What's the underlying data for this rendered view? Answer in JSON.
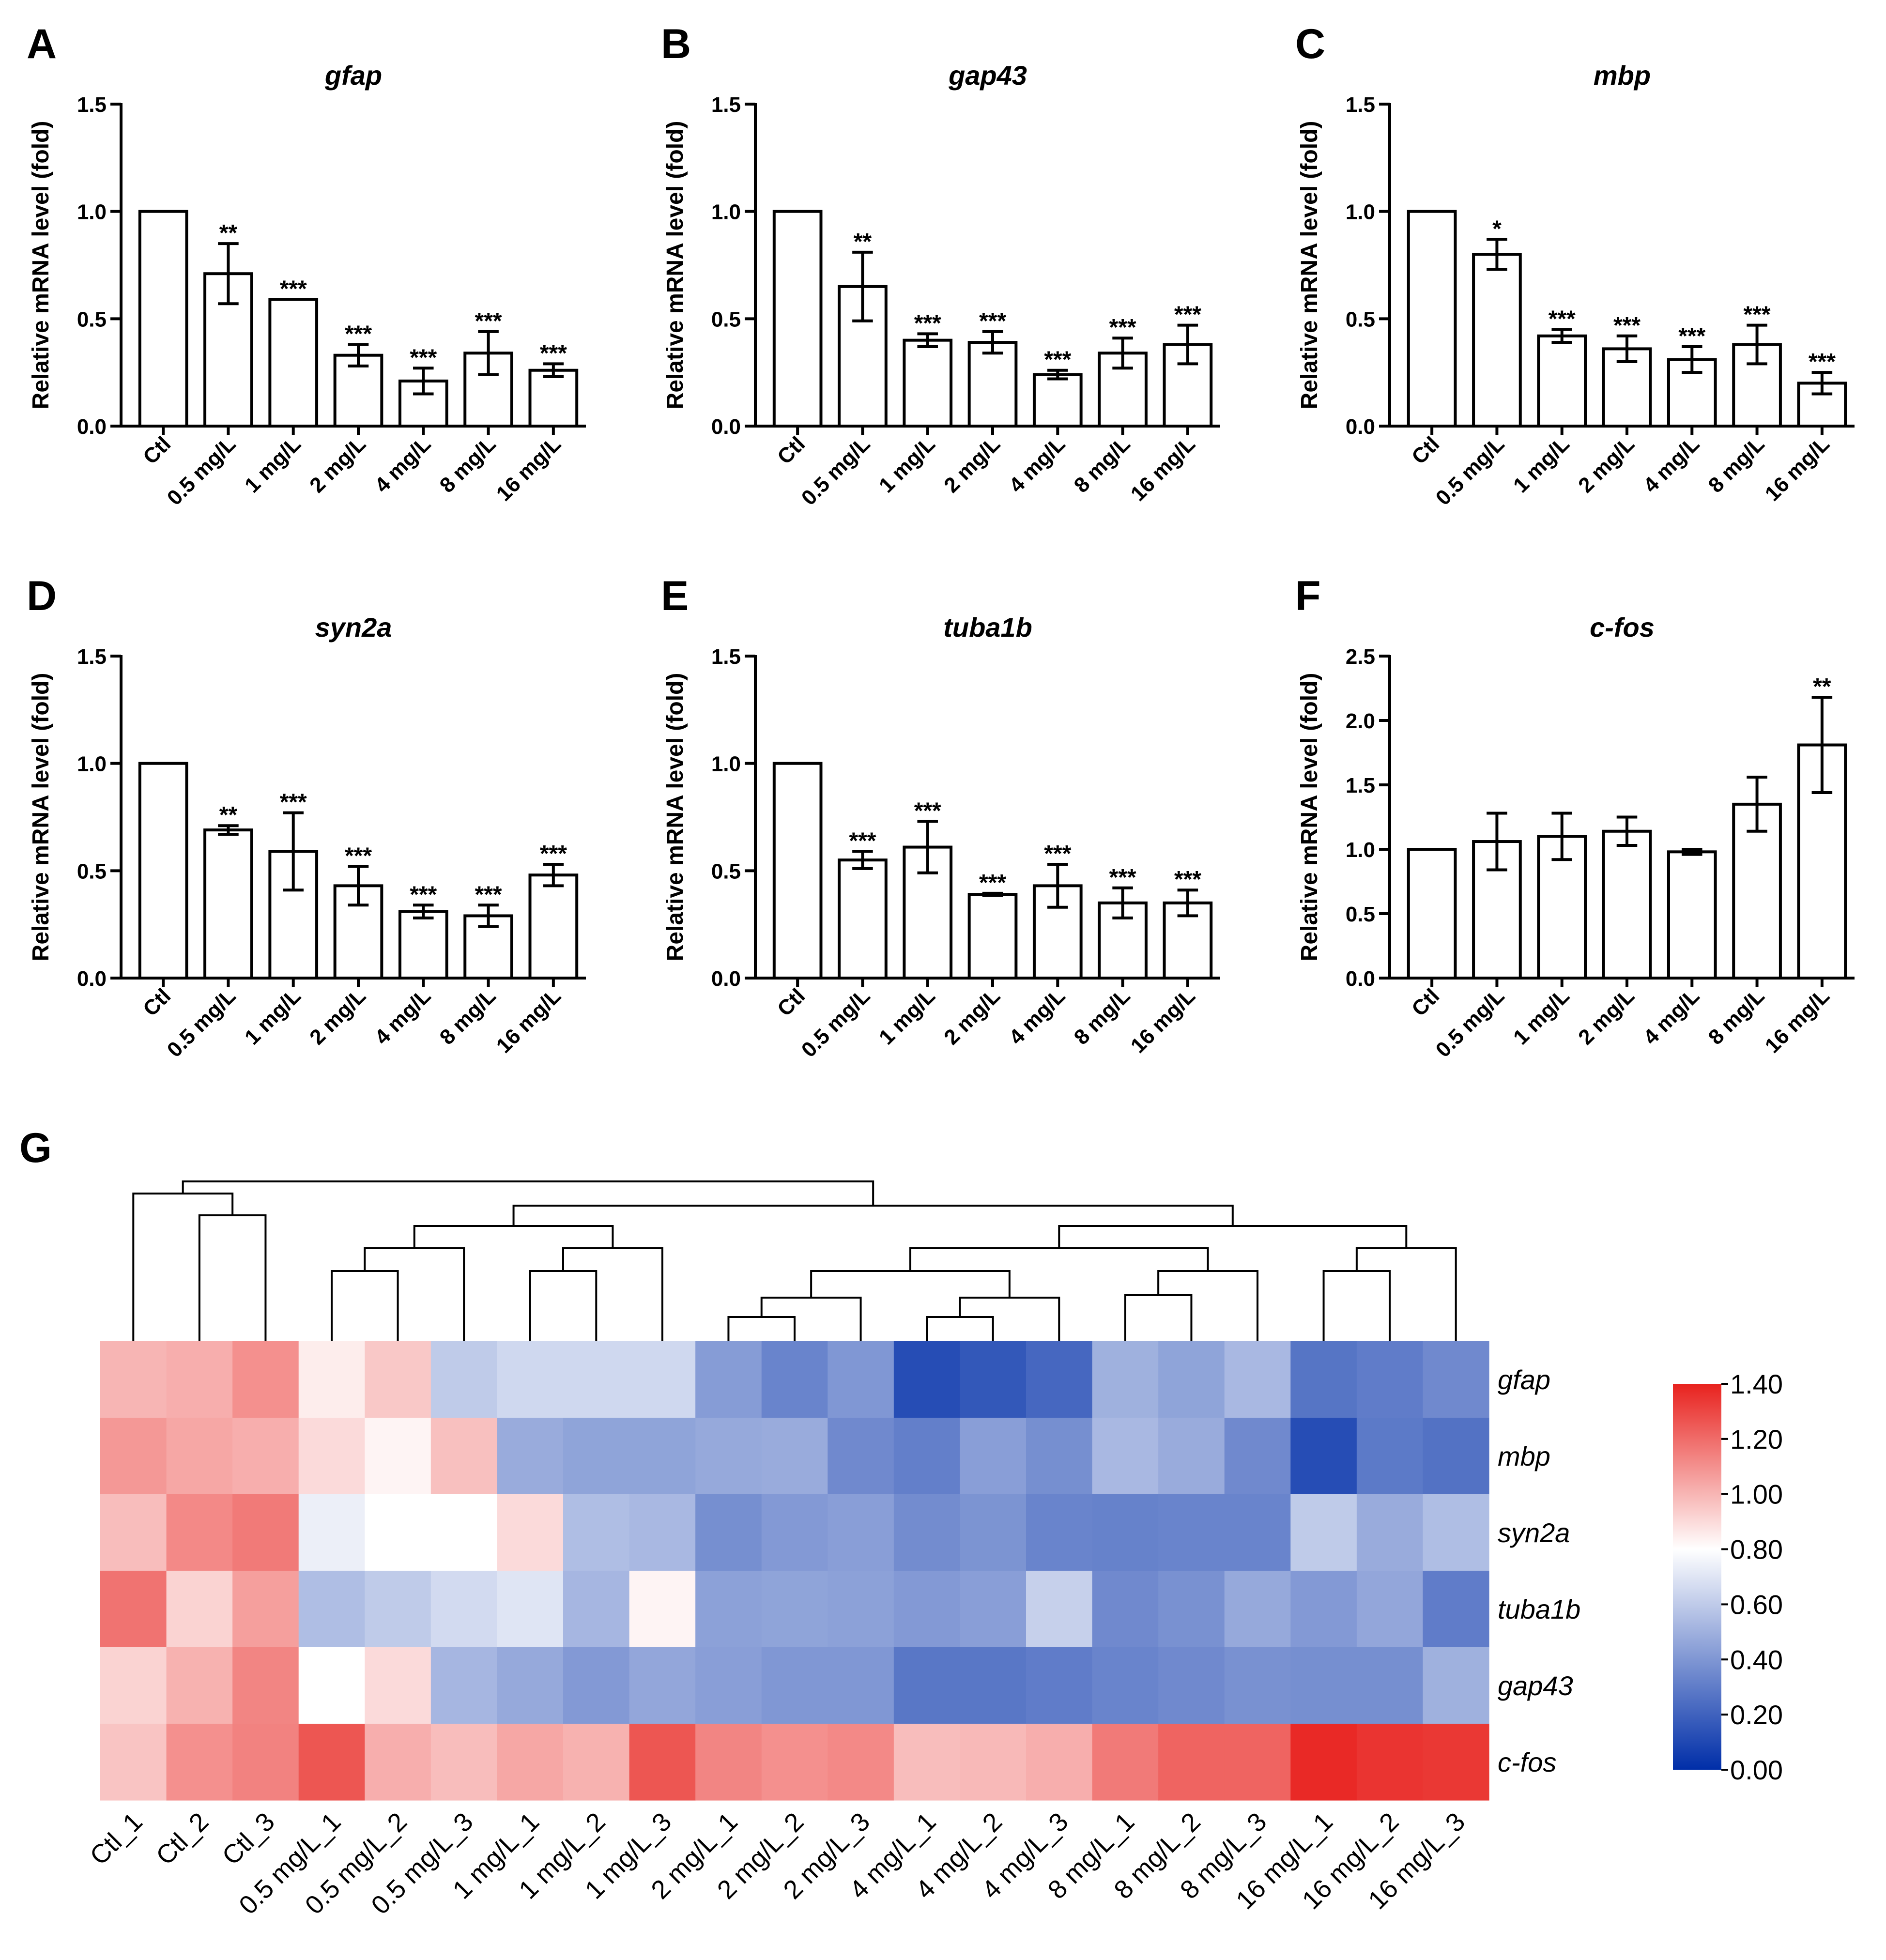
{
  "chart_data": [
    {
      "panel": "A",
      "type": "bar",
      "title": "gfap",
      "ylabel": "Relative mRNA level (fold)",
      "ylim": [
        0,
        1.5
      ],
      "yticks": [
        "0.0",
        "0.5",
        "1.0",
        "1.5"
      ],
      "categories": [
        "Ctl",
        "0.5 mg/L",
        "1 mg/L",
        "2 mg/L",
        "4 mg/L",
        "8 mg/L",
        "16 mg/L"
      ],
      "values": [
        1.0,
        0.71,
        0.59,
        0.33,
        0.21,
        0.34,
        0.26
      ],
      "errors": [
        0,
        0.14,
        0,
        0.05,
        0.06,
        0.1,
        0.03
      ],
      "significance": [
        "",
        "**",
        "***",
        "***",
        "***",
        "***",
        "***"
      ]
    },
    {
      "panel": "B",
      "type": "bar",
      "title": "gap43",
      "ylabel": "Relative mRNA level (fold)",
      "ylim": [
        0,
        1.5
      ],
      "yticks": [
        "0.0",
        "0.5",
        "1.0",
        "1.5"
      ],
      "categories": [
        "Ctl",
        "0.5 mg/L",
        "1 mg/L",
        "2 mg/L",
        "4 mg/L",
        "8 mg/L",
        "16 mg/L"
      ],
      "values": [
        1.0,
        0.65,
        0.4,
        0.39,
        0.24,
        0.34,
        0.38
      ],
      "errors": [
        0,
        0.16,
        0.03,
        0.05,
        0.02,
        0.07,
        0.09
      ],
      "significance": [
        "",
        "**",
        "***",
        "***",
        "***",
        "***",
        "***"
      ]
    },
    {
      "panel": "C",
      "type": "bar",
      "title": "mbp",
      "ylabel": "Relative mRNA level (fold)",
      "ylim": [
        0,
        1.5
      ],
      "yticks": [
        "0.0",
        "0.5",
        "1.0",
        "1.5"
      ],
      "categories": [
        "Ctl",
        "0.5 mg/L",
        "1 mg/L",
        "2 mg/L",
        "4 mg/L",
        "8 mg/L",
        "16 mg/L"
      ],
      "values": [
        1.0,
        0.8,
        0.42,
        0.36,
        0.31,
        0.38,
        0.2
      ],
      "errors": [
        0,
        0.07,
        0.03,
        0.06,
        0.06,
        0.09,
        0.05
      ],
      "significance": [
        "",
        "*",
        "***",
        "***",
        "***",
        "***",
        "***"
      ]
    },
    {
      "panel": "D",
      "type": "bar",
      "title": "syn2a",
      "ylabel": "Relative mRNA level (fold)",
      "ylim": [
        0,
        1.5
      ],
      "yticks": [
        "0.0",
        "0.5",
        "1.0",
        "1.5"
      ],
      "categories": [
        "Ctl",
        "0.5 mg/L",
        "1 mg/L",
        "2 mg/L",
        "4 mg/L",
        "8 mg/L",
        "16 mg/L"
      ],
      "values": [
        1.0,
        0.69,
        0.59,
        0.43,
        0.31,
        0.29,
        0.48
      ],
      "errors": [
        0,
        0.02,
        0.18,
        0.09,
        0.03,
        0.05,
        0.05
      ],
      "significance": [
        "",
        "**",
        "***",
        "***",
        "***",
        "***",
        "***"
      ]
    },
    {
      "panel": "E",
      "type": "bar",
      "title": "tuba1b",
      "ylabel": "Relative mRNA level (fold)",
      "ylim": [
        0,
        1.5
      ],
      "yticks": [
        "0.0",
        "0.5",
        "1.0",
        "1.5"
      ],
      "categories": [
        "Ctl",
        "0.5 mg/L",
        "1 mg/L",
        "2 mg/L",
        "4 mg/L",
        "8 mg/L",
        "16 mg/L"
      ],
      "values": [
        1.0,
        0.55,
        0.61,
        0.39,
        0.43,
        0.35,
        0.35
      ],
      "errors": [
        0,
        0.04,
        0.12,
        0.005,
        0.1,
        0.07,
        0.06
      ],
      "significance": [
        "",
        "***",
        "***",
        "***",
        "***",
        "***",
        "***"
      ]
    },
    {
      "panel": "F",
      "type": "bar",
      "title": "c-fos",
      "ylabel": "Relative mRNA level (fold)",
      "ylim": [
        0,
        2.5
      ],
      "yticks": [
        "0.0",
        "0.5",
        "1.0",
        "1.5",
        "2.0",
        "2.5"
      ],
      "categories": [
        "Ctl",
        "0.5 mg/L",
        "1 mg/L",
        "2 mg/L",
        "4 mg/L",
        "8 mg/L",
        "16 mg/L"
      ],
      "values": [
        1.0,
        1.06,
        1.1,
        1.14,
        0.98,
        1.35,
        1.81
      ],
      "errors": [
        0,
        0.22,
        0.18,
        0.11,
        0.02,
        0.21,
        0.37
      ],
      "significance": [
        "",
        "",
        "",
        "",
        "",
        "",
        "**"
      ]
    },
    {
      "panel": "G",
      "type": "heatmap",
      "rows": [
        "gfap",
        "mbp",
        "syn2a",
        "tuba1b",
        "gap43",
        "c-fos"
      ],
      "columns": [
        "Ctl_1",
        "Ctl_2",
        "Ctl_3",
        "0.5 mg/L_1",
        "0.5 mg/L_2",
        "0.5 mg/L_3",
        "1 mg/L_1",
        "1 mg/L_2",
        "1 mg/L_3",
        "2 mg/L_1",
        "2 mg/L_2",
        "2 mg/L_3",
        "4 mg/L_1",
        "4 mg/L_2",
        "4 mg/L_3",
        "8 mg/L_1",
        "8 mg/L_2",
        "8 mg/L_3",
        "16 mg/L_1",
        "16 mg/L_2",
        "16 mg/L_3"
      ],
      "values": [
        [
          1.0,
          1.02,
          1.1,
          0.85,
          0.95,
          0.6,
          0.65,
          0.65,
          0.65,
          0.42,
          0.33,
          0.4,
          0.12,
          0.16,
          0.22,
          0.5,
          0.45,
          0.53,
          0.27,
          0.3,
          0.35
        ],
        [
          1.08,
          1.04,
          1.02,
          0.9,
          0.83,
          0.97,
          0.48,
          0.45,
          0.45,
          0.47,
          0.48,
          0.35,
          0.31,
          0.43,
          0.37,
          0.53,
          0.48,
          0.35,
          0.12,
          0.29,
          0.26
        ],
        [
          0.98,
          1.12,
          1.16,
          0.74,
          0.8,
          0.8,
          0.9,
          0.55,
          0.53,
          0.37,
          0.41,
          0.43,
          0.36,
          0.39,
          0.33,
          0.32,
          0.33,
          0.33,
          0.6,
          0.48,
          0.55
        ],
        [
          1.18,
          0.92,
          1.06,
          0.55,
          0.6,
          0.66,
          0.7,
          0.52,
          0.83,
          0.44,
          0.45,
          0.44,
          0.41,
          0.43,
          0.62,
          0.35,
          0.38,
          0.47,
          0.41,
          0.46,
          0.3
        ],
        [
          0.92,
          1.01,
          1.13,
          0.8,
          0.9,
          0.52,
          0.47,
          0.41,
          0.46,
          0.43,
          0.4,
          0.4,
          0.28,
          0.28,
          0.3,
          0.33,
          0.35,
          0.38,
          0.37,
          0.37,
          0.5
        ],
        [
          0.96,
          1.1,
          1.14,
          1.26,
          1.02,
          0.98,
          1.04,
          1.01,
          1.26,
          1.13,
          1.1,
          1.12,
          0.98,
          0.99,
          1.02,
          1.16,
          1.22,
          1.22,
          1.38,
          1.35,
          1.34
        ]
      ],
      "colorbar": {
        "min": 0.0,
        "max": 1.4,
        "ticks": [
          "0.00",
          "0.20",
          "0.40",
          "0.60",
          "0.80",
          "1.00",
          "1.20",
          "1.40"
        ],
        "low_color": "#002ea8",
        "mid_color": "#ffffff",
        "high_color": "#e8221e",
        "mid_value": 0.8
      }
    }
  ]
}
